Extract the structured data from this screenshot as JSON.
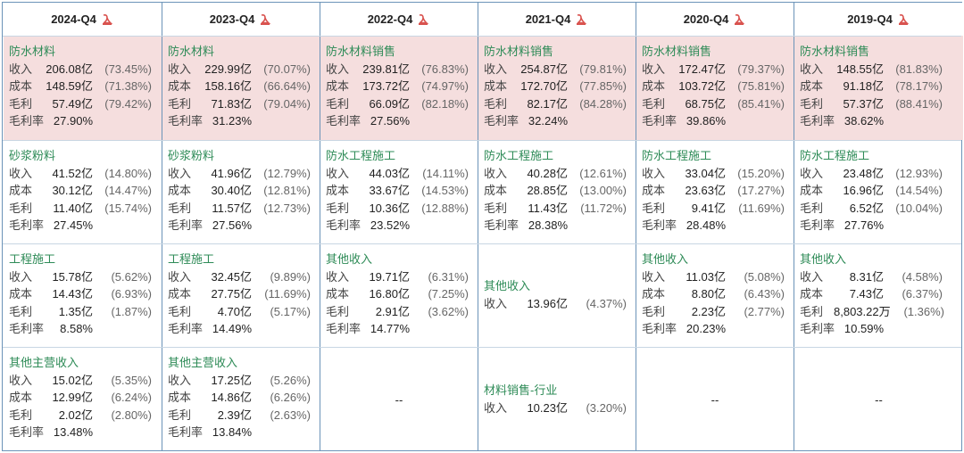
{
  "columns": [
    {
      "header": "2024-Q4",
      "cells": [
        {
          "segment": "防水材料",
          "highlight": true,
          "rows": [
            {
              "label": "收入",
              "amount": "206.08亿",
              "pct": "(73.45%)"
            },
            {
              "label": "成本",
              "amount": "148.59亿",
              "pct": "(71.38%)"
            },
            {
              "label": "毛利",
              "amount": "57.49亿",
              "pct": "(79.42%)"
            },
            {
              "label": "毛利率",
              "amount": "27.90%",
              "pct": ""
            }
          ]
        },
        {
          "segment": "砂浆粉料",
          "rows": [
            {
              "label": "收入",
              "amount": "41.52亿",
              "pct": "(14.80%)"
            },
            {
              "label": "成本",
              "amount": "30.12亿",
              "pct": "(14.47%)"
            },
            {
              "label": "毛利",
              "amount": "11.40亿",
              "pct": "(15.74%)"
            },
            {
              "label": "毛利率",
              "amount": "27.45%",
              "pct": ""
            }
          ]
        },
        {
          "segment": "工程施工",
          "rows": [
            {
              "label": "收入",
              "amount": "15.78亿",
              "pct": "(5.62%)"
            },
            {
              "label": "成本",
              "amount": "14.43亿",
              "pct": "(6.93%)"
            },
            {
              "label": "毛利",
              "amount": "1.35亿",
              "pct": "(1.87%)"
            },
            {
              "label": "毛利率",
              "amount": "8.58%",
              "pct": ""
            }
          ]
        },
        {
          "segment": "其他主营收入",
          "rows": [
            {
              "label": "收入",
              "amount": "15.02亿",
              "pct": "(5.35%)"
            },
            {
              "label": "成本",
              "amount": "12.99亿",
              "pct": "(6.24%)"
            },
            {
              "label": "毛利",
              "amount": "2.02亿",
              "pct": "(2.80%)"
            },
            {
              "label": "毛利率",
              "amount": "13.48%",
              "pct": ""
            }
          ]
        }
      ]
    },
    {
      "header": "2023-Q4",
      "cells": [
        {
          "segment": "防水材料",
          "highlight": true,
          "rows": [
            {
              "label": "收入",
              "amount": "229.99亿",
              "pct": "(70.07%)"
            },
            {
              "label": "成本",
              "amount": "158.16亿",
              "pct": "(66.64%)"
            },
            {
              "label": "毛利",
              "amount": "71.83亿",
              "pct": "(79.04%)"
            },
            {
              "label": "毛利率",
              "amount": "31.23%",
              "pct": ""
            }
          ]
        },
        {
          "segment": "砂浆粉料",
          "rows": [
            {
              "label": "收入",
              "amount": "41.96亿",
              "pct": "(12.79%)"
            },
            {
              "label": "成本",
              "amount": "30.40亿",
              "pct": "(12.81%)"
            },
            {
              "label": "毛利",
              "amount": "11.57亿",
              "pct": "(12.73%)"
            },
            {
              "label": "毛利率",
              "amount": "27.56%",
              "pct": ""
            }
          ]
        },
        {
          "segment": "工程施工",
          "rows": [
            {
              "label": "收入",
              "amount": "32.45亿",
              "pct": "(9.89%)"
            },
            {
              "label": "成本",
              "amount": "27.75亿",
              "pct": "(11.69%)"
            },
            {
              "label": "毛利",
              "amount": "4.70亿",
              "pct": "(5.17%)"
            },
            {
              "label": "毛利率",
              "amount": "14.49%",
              "pct": ""
            }
          ]
        },
        {
          "segment": "其他主营收入",
          "rows": [
            {
              "label": "收入",
              "amount": "17.25亿",
              "pct": "(5.26%)"
            },
            {
              "label": "成本",
              "amount": "14.86亿",
              "pct": "(6.26%)"
            },
            {
              "label": "毛利",
              "amount": "2.39亿",
              "pct": "(2.63%)"
            },
            {
              "label": "毛利率",
              "amount": "13.84%",
              "pct": ""
            }
          ]
        }
      ]
    },
    {
      "header": "2022-Q4",
      "cells": [
        {
          "segment": "防水材料销售",
          "highlight": true,
          "rows": [
            {
              "label": "收入",
              "amount": "239.81亿",
              "pct": "(76.83%)"
            },
            {
              "label": "成本",
              "amount": "173.72亿",
              "pct": "(74.97%)"
            },
            {
              "label": "毛利",
              "amount": "66.09亿",
              "pct": "(82.18%)"
            },
            {
              "label": "毛利率",
              "amount": "27.56%",
              "pct": ""
            }
          ]
        },
        {
          "segment": "防水工程施工",
          "rows": [
            {
              "label": "收入",
              "amount": "44.03亿",
              "pct": "(14.11%)"
            },
            {
              "label": "成本",
              "amount": "33.67亿",
              "pct": "(14.53%)"
            },
            {
              "label": "毛利",
              "amount": "10.36亿",
              "pct": "(12.88%)"
            },
            {
              "label": "毛利率",
              "amount": "23.52%",
              "pct": ""
            }
          ]
        },
        {
          "segment": "其他收入",
          "rows": [
            {
              "label": "收入",
              "amount": "19.71亿",
              "pct": "(6.31%)"
            },
            {
              "label": "成本",
              "amount": "16.80亿",
              "pct": "(7.25%)"
            },
            {
              "label": "毛利",
              "amount": "2.91亿",
              "pct": "(3.62%)"
            },
            {
              "label": "毛利率",
              "amount": "14.77%",
              "pct": ""
            }
          ]
        },
        {
          "empty": "--"
        }
      ]
    },
    {
      "header": "2021-Q4",
      "cells": [
        {
          "segment": "防水材料销售",
          "highlight": true,
          "rows": [
            {
              "label": "收入",
              "amount": "254.87亿",
              "pct": "(79.81%)"
            },
            {
              "label": "成本",
              "amount": "172.70亿",
              "pct": "(77.85%)"
            },
            {
              "label": "毛利",
              "amount": "82.17亿",
              "pct": "(84.28%)"
            },
            {
              "label": "毛利率",
              "amount": "32.24%",
              "pct": ""
            }
          ]
        },
        {
          "segment": "防水工程施工",
          "rows": [
            {
              "label": "收入",
              "amount": "40.28亿",
              "pct": "(12.61%)"
            },
            {
              "label": "成本",
              "amount": "28.85亿",
              "pct": "(13.00%)"
            },
            {
              "label": "毛利",
              "amount": "11.43亿",
              "pct": "(11.72%)"
            },
            {
              "label": "毛利率",
              "amount": "28.38%",
              "pct": ""
            }
          ]
        },
        {
          "segment": "其他收入",
          "centered": true,
          "rows": [
            {
              "label": "收入",
              "amount": "13.96亿",
              "pct": "(4.37%)"
            }
          ]
        },
        {
          "segment": "材料销售-行业",
          "centered": true,
          "rows": [
            {
              "label": "收入",
              "amount": "10.23亿",
              "pct": "(3.20%)"
            }
          ]
        }
      ]
    },
    {
      "header": "2020-Q4",
      "cells": [
        {
          "segment": "防水材料销售",
          "highlight": true,
          "rows": [
            {
              "label": "收入",
              "amount": "172.47亿",
              "pct": "(79.37%)"
            },
            {
              "label": "成本",
              "amount": "103.72亿",
              "pct": "(75.81%)"
            },
            {
              "label": "毛利",
              "amount": "68.75亿",
              "pct": "(85.41%)"
            },
            {
              "label": "毛利率",
              "amount": "39.86%",
              "pct": ""
            }
          ]
        },
        {
          "segment": "防水工程施工",
          "rows": [
            {
              "label": "收入",
              "amount": "33.04亿",
              "pct": "(15.20%)"
            },
            {
              "label": "成本",
              "amount": "23.63亿",
              "pct": "(17.27%)"
            },
            {
              "label": "毛利",
              "amount": "9.41亿",
              "pct": "(11.69%)"
            },
            {
              "label": "毛利率",
              "amount": "28.48%",
              "pct": ""
            }
          ]
        },
        {
          "segment": "其他收入",
          "rows": [
            {
              "label": "收入",
              "amount": "11.03亿",
              "pct": "(5.08%)"
            },
            {
              "label": "成本",
              "amount": "8.80亿",
              "pct": "(6.43%)"
            },
            {
              "label": "毛利",
              "amount": "2.23亿",
              "pct": "(2.77%)"
            },
            {
              "label": "毛利率",
              "amount": "20.23%",
              "pct": ""
            }
          ]
        },
        {
          "empty": "--"
        }
      ]
    },
    {
      "header": "2019-Q4",
      "cells": [
        {
          "segment": "防水材料销售",
          "highlight": true,
          "rows": [
            {
              "label": "收入",
              "amount": "148.55亿",
              "pct": "(81.83%)"
            },
            {
              "label": "成本",
              "amount": "91.18亿",
              "pct": "(78.17%)"
            },
            {
              "label": "毛利",
              "amount": "57.37亿",
              "pct": "(88.41%)"
            },
            {
              "label": "毛利率",
              "amount": "38.62%",
              "pct": ""
            }
          ]
        },
        {
          "segment": "防水工程施工",
          "rows": [
            {
              "label": "收入",
              "amount": "23.48亿",
              "pct": "(12.93%)"
            },
            {
              "label": "成本",
              "amount": "16.96亿",
              "pct": "(14.54%)"
            },
            {
              "label": "毛利",
              "amount": "6.52亿",
              "pct": "(10.04%)"
            },
            {
              "label": "毛利率",
              "amount": "27.76%",
              "pct": ""
            }
          ]
        },
        {
          "segment": "其他收入",
          "rows": [
            {
              "label": "收入",
              "amount": "8.31亿",
              "pct": "(4.58%)"
            },
            {
              "label": "成本",
              "amount": "7.43亿",
              "pct": "(6.37%)"
            },
            {
              "label": "毛利",
              "amount": "8,803.22万",
              "pct": "(1.36%)",
              "wide": true
            },
            {
              "label": "毛利率",
              "amount": "10.59%",
              "pct": ""
            }
          ]
        },
        {
          "empty": "--"
        }
      ]
    }
  ],
  "colors": {
    "segment_name": "#2e8b57",
    "highlight_bg": "#f5dede",
    "border": "#6b93b8",
    "pdf_icon": "#d9534f"
  },
  "icons": {
    "header_action": "pdf-icon"
  }
}
